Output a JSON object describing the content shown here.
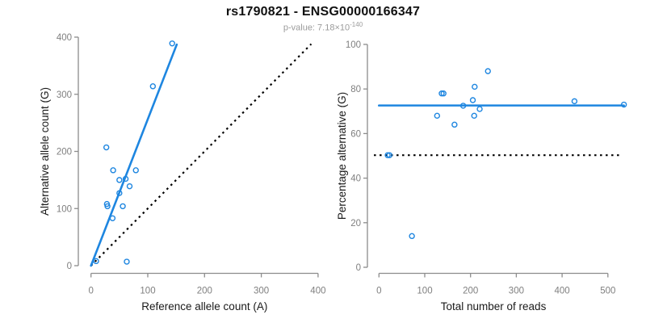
{
  "header": {
    "title": "rs1790821 - ENSG00000166347",
    "subtitle_prefix": "p-value: 7.18×10",
    "subtitle_exponent": "-140"
  },
  "colors": {
    "accent_blue": "#1e86e0",
    "axis_gray": "#8c8c8c",
    "tick_text_gray": "#7f7f7f",
    "label_black": "#1a1a1a",
    "dotted_black": "#000000",
    "subtitle_gray": "#9b9b9b"
  },
  "chart_data": [
    {
      "type": "scatter",
      "name": "allele-counts-scatter",
      "xlabel": "Reference allele count (A)",
      "ylabel": "Alternative allele count (G)",
      "xlim": [
        0,
        400
      ],
      "ylim": [
        0,
        400
      ],
      "xticks": [
        0,
        100,
        200,
        300,
        400
      ],
      "yticks": [
        0,
        100,
        200,
        300,
        400
      ],
      "grid": false,
      "legend": "none",
      "points": [
        [
          143,
          389
        ],
        [
          109,
          314
        ],
        [
          27,
          207
        ],
        [
          39,
          167
        ],
        [
          79,
          167
        ],
        [
          50,
          150
        ],
        [
          61,
          152
        ],
        [
          68,
          139
        ],
        [
          50,
          127
        ],
        [
          28,
          108
        ],
        [
          29,
          104
        ],
        [
          56,
          104
        ],
        [
          38,
          83
        ],
        [
          9,
          8
        ],
        [
          63,
          7
        ]
      ],
      "lines": [
        {
          "name": "identity-line",
          "style": "dotted",
          "color": "#000000",
          "from": [
            0,
            0
          ],
          "to": [
            388,
            388
          ]
        },
        {
          "name": "fit-line",
          "style": "solid",
          "color": "#1e86e0",
          "from": [
            0,
            0
          ],
          "to": [
            151,
            387
          ]
        }
      ]
    },
    {
      "type": "scatter",
      "name": "percentage-vs-reads-scatter",
      "xlabel": "Total number of reads",
      "ylabel": "Percentage alternative (G)",
      "xlim": [
        0,
        540
      ],
      "ylim": [
        0,
        100
      ],
      "xticks": [
        0,
        100,
        200,
        300,
        400,
        500
      ],
      "yticks": [
        0,
        20,
        40,
        60,
        80,
        100
      ],
      "grid": false,
      "legend": "none",
      "points": [
        [
          238,
          88
        ],
        [
          209,
          81
        ],
        [
          137,
          78
        ],
        [
          141,
          78
        ],
        [
          205,
          75
        ],
        [
          427,
          74.5
        ],
        [
          535,
          73
        ],
        [
          184,
          72.5
        ],
        [
          220,
          71
        ],
        [
          127,
          68
        ],
        [
          208,
          68
        ],
        [
          165,
          64
        ],
        [
          19,
          50.3
        ],
        [
          23,
          50.3
        ],
        [
          72,
          14
        ]
      ],
      "lines": [
        {
          "name": "expected-percentage-line",
          "style": "dotted",
          "color": "#000000",
          "from": [
            -11,
            50.3
          ],
          "to": [
            527,
            50.3
          ]
        },
        {
          "name": "mean-percentage-line",
          "style": "solid",
          "color": "#1e86e0",
          "from": [
            0,
            72.6
          ],
          "to": [
            535,
            72.6
          ]
        }
      ]
    }
  ]
}
